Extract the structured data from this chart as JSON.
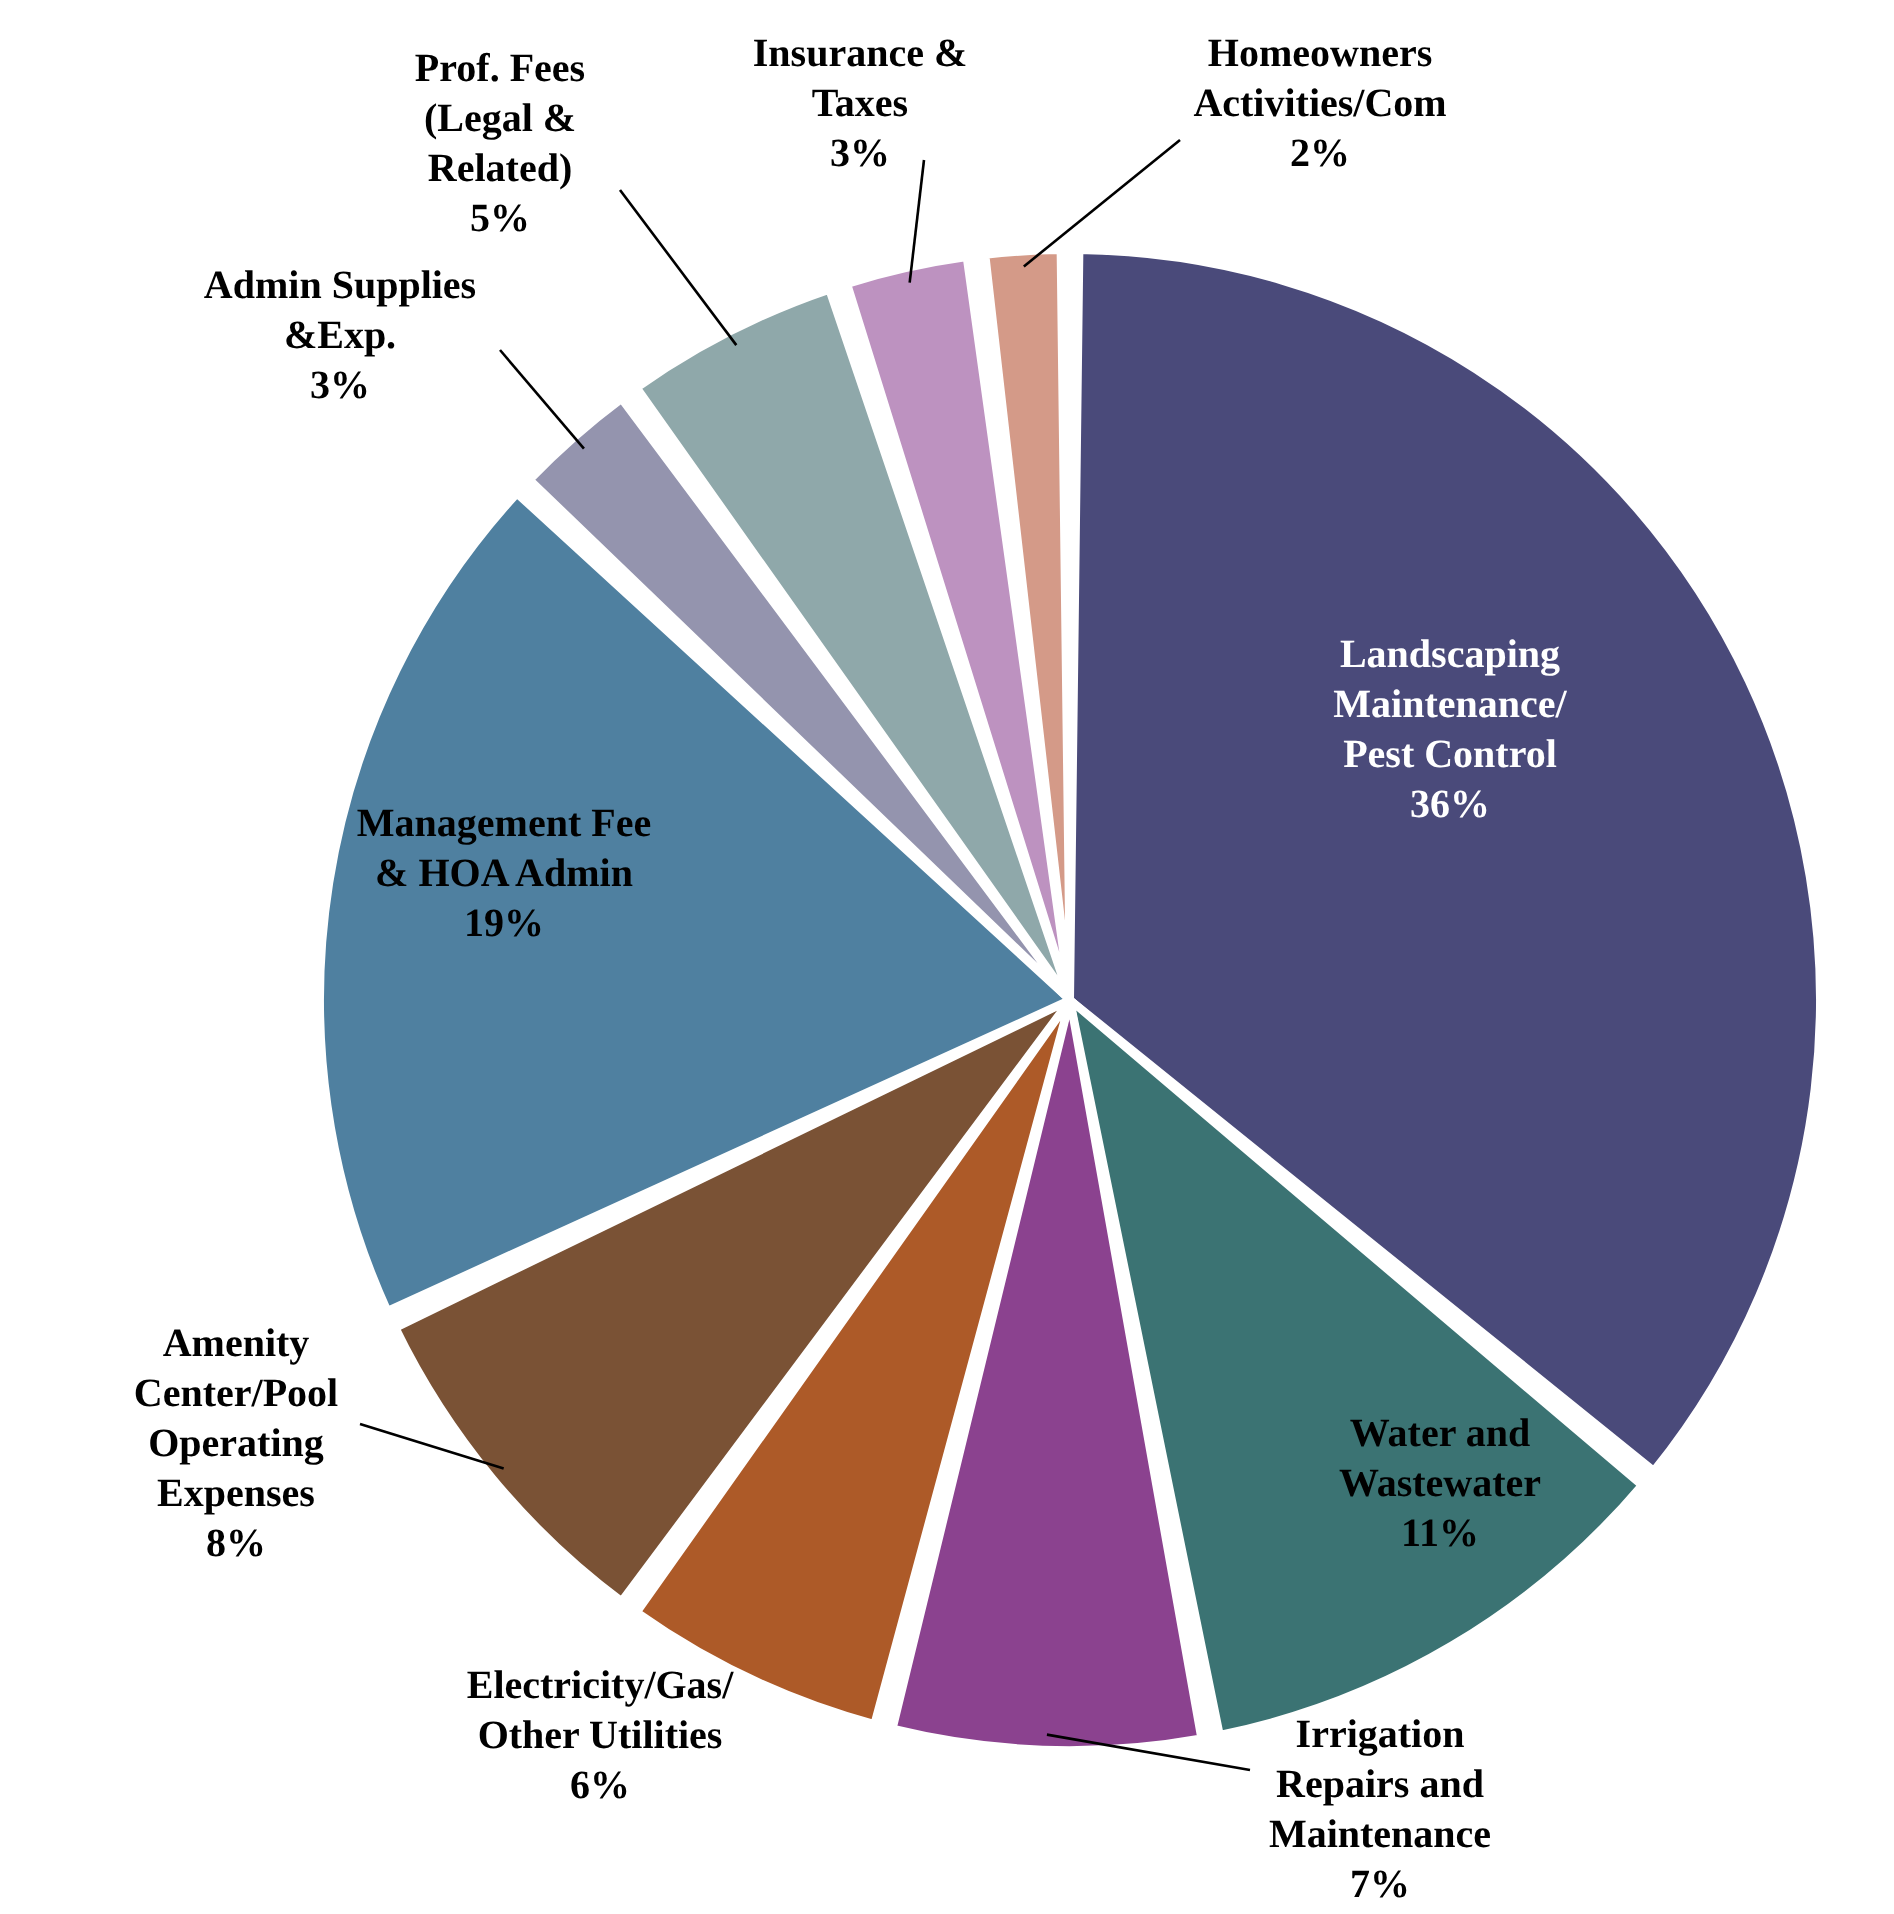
{
  "chart_data": {
    "type": "pie",
    "categories": [
      "Landscaping Maintenance/ Pest Control",
      "Water and Wastewater",
      "Irrigation Repairs and Maintenance",
      "Electricity/Gas/ Other Utilities",
      "Amenity Center/Pool Operating Expenses",
      "Management Fee & HOA Admin",
      "Admin Supplies &Exp.",
      "Prof. Fees (Legal & Related)",
      "Insurance & Taxes",
      "Homeowners Activities/Com"
    ],
    "values": [
      36,
      11,
      7,
      6,
      8,
      19,
      3,
      5,
      3,
      2
    ],
    "value_labels": [
      "36%",
      "11%",
      "7%",
      "6%",
      "8%",
      "19%",
      "3%",
      "5%",
      "3%",
      "2%"
    ],
    "colors": [
      "#4a4a7a",
      "#3b7373",
      "#8b428f",
      "#ad5a28",
      "#7a5235",
      "#4f80a0",
      "#9494ae",
      "#8fa8aa",
      "#bd92c0",
      "#d49a88"
    ]
  }
}
